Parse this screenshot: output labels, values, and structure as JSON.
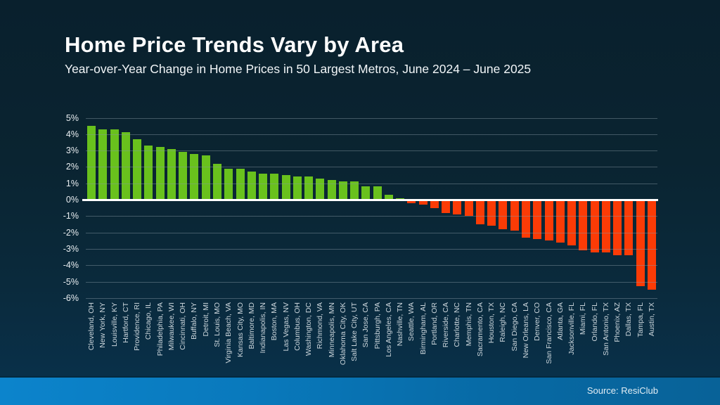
{
  "slide": {
    "title": "Home Price Trends Vary by Area",
    "subtitle": "Year-over-Year Change in Home Prices in 50 Largest Metros, June 2024 – June 2025",
    "source": "Source: ResiClub"
  },
  "chart_data": {
    "type": "bar",
    "title": "Home Price Trends Vary by Area",
    "subtitle": "Year-over-Year Change in Home Prices in 50 Largest Metros, June 2024 – June 2025",
    "xlabel": "",
    "ylabel": "",
    "ylim": [
      -6,
      5
    ],
    "y_ticks": [
      5,
      4,
      3,
      2,
      1,
      0,
      -1,
      -2,
      -3,
      -4,
      -5,
      -6
    ],
    "y_tick_suffix": "%",
    "grid": true,
    "legend": false,
    "zero_line": true,
    "colors": {
      "positive": "#69c11d",
      "negative": "#fb3b06",
      "zero_line": "#ffffff",
      "background_top": "#09202d",
      "background_bottom": "#093049",
      "footer_band": "#0979bc"
    },
    "categories": [
      "Cleveland, OH",
      "New York, NY",
      "Louisville, KY",
      "Hartford, CT",
      "Providence, RI",
      "Chicago, IL",
      "Philadelphia, PA",
      "Milwaukee, WI",
      "Cincinnati, OH",
      "Buffalo, NY",
      "Detroit, MI",
      "St. Louis, MO",
      "Virginia Beach, VA",
      "Kansas City, MO",
      "Baltimore, MD",
      "Indianapolis, IN",
      "Boston, MA",
      "Las Vegas, NV",
      "Columbus, OH",
      "Washington, DC",
      "Richmond, VA",
      "Minneapolis, MN",
      "Oklahoma City, OK",
      "Salt Lake City, UT",
      "San Jose, CA",
      "Pittsburgh, PA",
      "Los Angeles, CA",
      "Nashville, TN",
      "Seattle, WA",
      "Birmingham, AL",
      "Portland, OR",
      "Riverside, CA",
      "Charlotte, NC",
      "Memphis, TN",
      "Sacramento, CA",
      "Houston, TX",
      "Raleigh, NC",
      "San Diego, CA",
      "New Orleans, LA",
      "Denver, CO",
      "San Francisco, CA",
      "Atlanta, GA",
      "Jacksonville, FL",
      "Miami, FL",
      "Orlando, FL",
      "San Antonio, TX",
      "Phoenix, AZ",
      "Dallas, TX",
      "Tampa, FL",
      "Austin, TX"
    ],
    "values": [
      4.5,
      4.3,
      4.3,
      4.1,
      3.7,
      3.3,
      3.2,
      3.1,
      2.9,
      2.8,
      2.7,
      2.2,
      1.9,
      1.9,
      1.7,
      1.6,
      1.6,
      1.5,
      1.4,
      1.4,
      1.3,
      1.2,
      1.1,
      1.1,
      0.8,
      0.8,
      0.3,
      0.1,
      -0.2,
      -0.3,
      -0.5,
      -0.8,
      -0.9,
      -1.0,
      -1.5,
      -1.6,
      -1.8,
      -1.9,
      -2.3,
      -2.4,
      -2.5,
      -2.6,
      -2.8,
      -3.1,
      -3.2,
      -3.2,
      -3.4,
      -3.4,
      -5.3,
      -5.5
    ]
  }
}
